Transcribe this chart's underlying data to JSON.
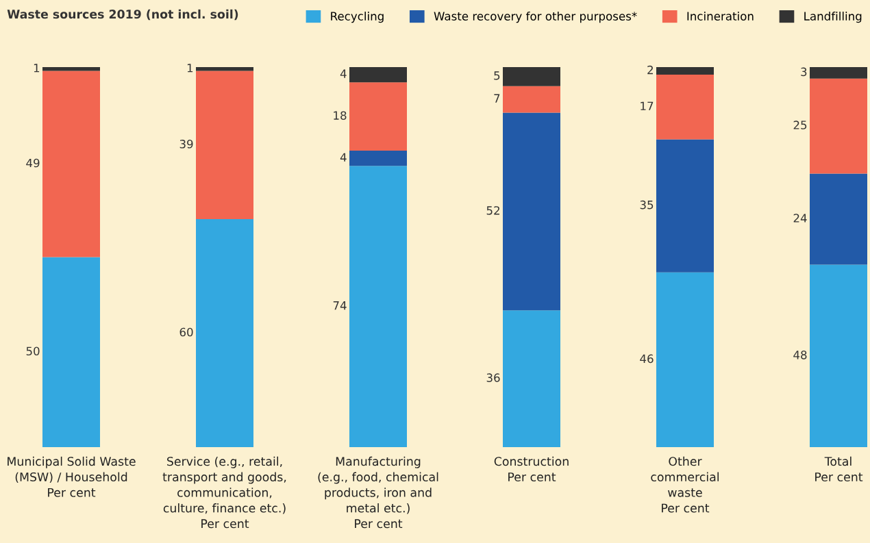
{
  "chart_data": {
    "type": "bar",
    "title": "Waste sources 2019 (not incl. soil)",
    "stacked": true,
    "data_labels": true,
    "legend": "top right",
    "categories": [
      "Municipal Solid Waste\n(MSW) / Household\nPer cent",
      "Service (e.g., retail,\ntransport and goods,\ncommunication,\nculture, finance etc.)\nPer cent",
      "Manufacturing\n(e.g., food, chemical\nproducts, iron and\nmetal etc.)\nPer cent",
      "Construction\nPer cent",
      "Other\ncommercial\nwaste\nPer cent",
      "Total\nPer cent"
    ],
    "series": [
      {
        "name": "Recycling",
        "color": "#33a8e0",
        "values": [
          50,
          60,
          74,
          36,
          46,
          48
        ]
      },
      {
        "name": "Waste recovery for other purposes*",
        "color": "#225aa8",
        "values": [
          null,
          null,
          4,
          52,
          35,
          24
        ]
      },
      {
        "name": "Incineration",
        "color": "#f26651",
        "values": [
          49,
          39,
          18,
          7,
          17,
          25
        ]
      },
      {
        "name": "Landfilling",
        "color": "#333333",
        "values": [
          1,
          1,
          4,
          5,
          2,
          3
        ]
      }
    ]
  }
}
